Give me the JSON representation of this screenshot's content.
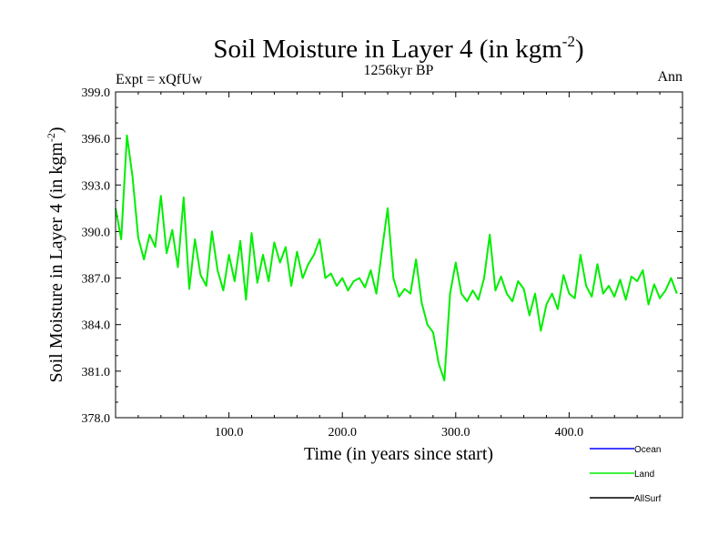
{
  "chart_data": {
    "type": "line",
    "title": "Soil Moisture in Layer 4 (in kgm",
    "title_sup": "-2",
    "title_end": ")",
    "subtitle": "1256kyr BP",
    "left_label": "Expt = xQfUw",
    "right_label": "Ann",
    "xlabel": "Time (in years since start)",
    "ylabel": "Soil Moisture in Layer 4 (in kgm",
    "ylabel_sup": "-2",
    "ylabel_end": ")",
    "xlim": [
      0,
      500
    ],
    "ylim": [
      378,
      399
    ],
    "x_ticks": [
      100,
      200,
      300,
      400
    ],
    "x_tick_labels": [
      "100.0",
      "200.0",
      "300.0",
      "400.0"
    ],
    "y_ticks": [
      378,
      381,
      384,
      387,
      390,
      393,
      396,
      399
    ],
    "y_tick_labels": [
      "378.0",
      "381.0",
      "384.0",
      "387.0",
      "390.0",
      "393.0",
      "396.0",
      "399.0"
    ],
    "legend_position": "bottom-right",
    "series": [
      {
        "name": "Ocean",
        "color": "#0000ff",
        "values": []
      },
      {
        "name": "Land",
        "color": "#00ee00",
        "x_start": 0,
        "x_step": 5,
        "values": [
          391.5,
          389.5,
          396.2,
          393.5,
          389.6,
          388.2,
          389.8,
          389.0,
          392.3,
          388.6,
          390.1,
          387.7,
          392.2,
          386.3,
          389.5,
          387.2,
          386.5,
          390.0,
          387.5,
          386.2,
          388.5,
          386.8,
          389.4,
          385.6,
          389.9,
          386.7,
          388.5,
          386.8,
          389.3,
          388.0,
          389.0,
          386.5,
          388.7,
          387.0,
          387.9,
          388.5,
          389.5,
          387.0,
          387.3,
          386.5,
          387.0,
          386.2,
          386.8,
          387.0,
          386.4,
          387.5,
          386.0,
          388.8,
          391.5,
          387.0,
          385.8,
          386.3,
          386.0,
          388.2,
          385.4,
          384.0,
          383.5,
          381.5,
          380.4,
          386.0,
          388.0,
          386.0,
          385.5,
          386.2,
          385.6,
          387.0,
          389.8,
          386.2,
          387.1,
          386.0,
          385.5,
          386.8,
          386.3,
          384.6,
          386.0,
          383.6,
          385.3,
          386.0,
          385.0,
          387.2,
          386.0,
          385.7,
          388.5,
          386.5,
          385.8,
          387.9,
          386.0,
          386.5,
          385.8,
          386.9,
          385.6,
          387.1,
          386.8,
          387.5,
          385.3,
          386.6,
          385.7,
          386.2,
          387.0,
          386.0
        ]
      },
      {
        "name": "AllSurf",
        "color": "#000000",
        "values": []
      }
    ]
  }
}
